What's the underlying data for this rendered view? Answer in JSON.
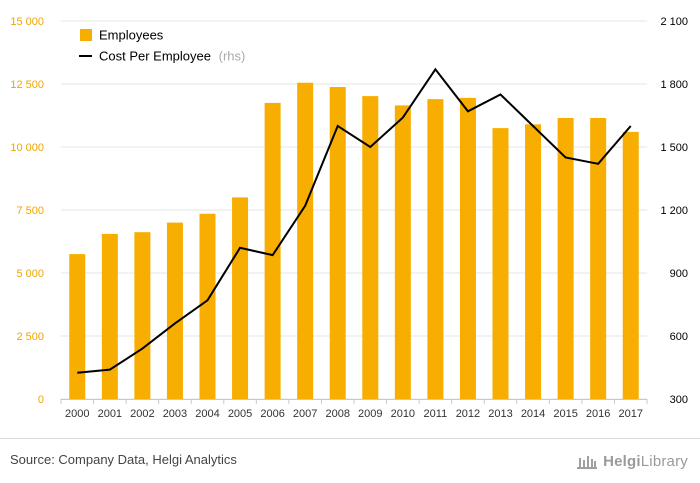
{
  "chart_data": {
    "type": "bar+line",
    "categories": [
      "2000",
      "2001",
      "2002",
      "2003",
      "2004",
      "2005",
      "2006",
      "2007",
      "2008",
      "2009",
      "2010",
      "2011",
      "2012",
      "2013",
      "2014",
      "2015",
      "2016",
      "2017"
    ],
    "series": [
      {
        "name": "Employees",
        "type": "bar",
        "axis": "left",
        "color": "#f7ae00",
        "values": [
          5750,
          6550,
          6620,
          7000,
          7350,
          8000,
          11750,
          12550,
          12380,
          12020,
          11650,
          11900,
          11950,
          10750,
          10900,
          11150,
          11150,
          10600
        ]
      },
      {
        "name": "Cost Per Employee",
        "name_suffix": "(rhs)",
        "type": "line",
        "axis": "right",
        "color": "#000000",
        "values": [
          425,
          440,
          540,
          660,
          770,
          1020,
          985,
          1220,
          1600,
          1500,
          1640,
          1870,
          1670,
          1750,
          1600,
          1450,
          1420,
          1600
        ]
      }
    ],
    "y_left": {
      "min": 0,
      "max": 15000,
      "ticks": [
        "0",
        "2 500",
        "5 000",
        "7 500",
        "10 000",
        "12 500",
        "15 000"
      ]
    },
    "y_right": {
      "min": 300,
      "max": 2100,
      "ticks": [
        "300",
        "600",
        "900",
        "1 200",
        "1 500",
        "1 800",
        "2 100"
      ]
    },
    "grid": true,
    "legend_position": "top-left"
  },
  "footer": {
    "source": "Source: Company Data, Helgi Analytics",
    "logo_part1": "Helgi",
    "logo_part2": "Library"
  },
  "colors": {
    "bar": "#f7ae00",
    "axis_left_text": "#f0a500",
    "axis_right_text": "#000000",
    "grid": "#e6e6e6"
  }
}
